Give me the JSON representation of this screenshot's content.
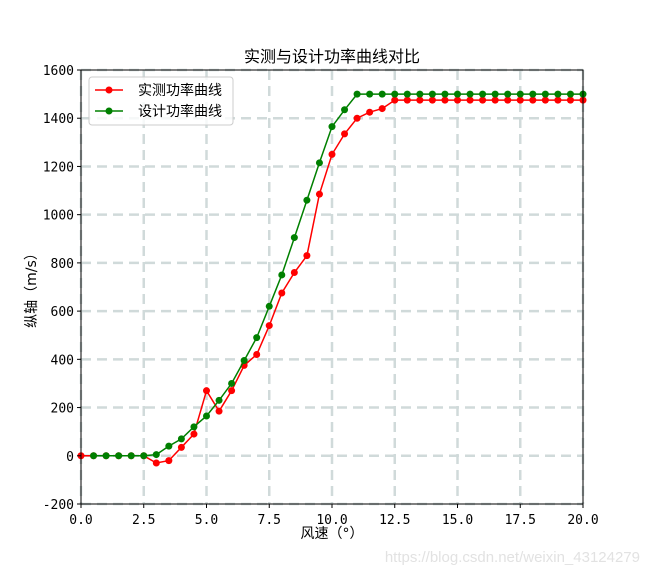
{
  "chart_data": {
    "type": "line",
    "title": "实测与设计功率曲线对比",
    "xlabel": "风速（°）",
    "ylabel": "纵轴（m/s）",
    "xlim": [
      0,
      20
    ],
    "ylim": [
      -200,
      1600
    ],
    "xticks": [
      "0.0",
      "2.5",
      "5.0",
      "7.5",
      "10.0",
      "12.5",
      "15.0",
      "17.5",
      "20.0"
    ],
    "yticks": [
      "-200",
      "0",
      "200",
      "400",
      "600",
      "800",
      "1000",
      "1200",
      "1400",
      "1600"
    ],
    "grid": true,
    "grid_style": "dashed",
    "legend_position": "upper left",
    "series": [
      {
        "name": "实测功率曲线",
        "color": "#ff0000",
        "marker": "circle",
        "x": [
          0,
          0.5,
          1,
          1.5,
          2,
          2.5,
          3,
          3.5,
          4,
          4.5,
          5,
          5.5,
          6,
          6.5,
          7,
          7.5,
          8,
          8.5,
          9,
          9.5,
          10,
          10.5,
          11,
          11.5,
          12,
          12.5,
          13,
          13.5,
          14,
          14.5,
          15,
          15.5,
          16,
          16.5,
          17,
          17.5,
          18,
          18.5,
          19,
          19.5,
          20
        ],
        "values": [
          0,
          0,
          0,
          0,
          0,
          0,
          -30,
          -20,
          35,
          90,
          270,
          185,
          270,
          375,
          420,
          540,
          675,
          760,
          830,
          1085,
          1250,
          1335,
          1400,
          1425,
          1440,
          1475,
          1475,
          1475,
          1475,
          1475,
          1475,
          1475,
          1475,
          1475,
          1475,
          1475,
          1475,
          1475,
          1475,
          1475,
          1475
        ]
      },
      {
        "name": "设计功率曲线",
        "color": "#008000",
        "marker": "circle",
        "x": [
          0.5,
          1,
          1.5,
          2,
          2.5,
          3,
          3.5,
          4,
          4.5,
          5,
          5.5,
          6,
          6.5,
          7,
          7.5,
          8,
          8.5,
          9,
          9.5,
          10,
          10.5,
          11,
          11.5,
          12,
          12.5,
          13,
          13.5,
          14,
          14.5,
          15,
          15.5,
          16,
          16.5,
          17,
          17.5,
          18,
          18.5,
          19,
          19.5,
          20
        ],
        "values": [
          0,
          0,
          0,
          0,
          0,
          5,
          40,
          70,
          120,
          165,
          230,
          300,
          395,
          490,
          620,
          750,
          905,
          1060,
          1215,
          1365,
          1435,
          1500,
          1500,
          1500,
          1500,
          1500,
          1500,
          1500,
          1500,
          1500,
          1500,
          1500,
          1500,
          1500,
          1500,
          1500,
          1500,
          1500,
          1500,
          1500
        ]
      }
    ]
  },
  "watermark": "https://blog.csdn.net/weixin_43124279"
}
